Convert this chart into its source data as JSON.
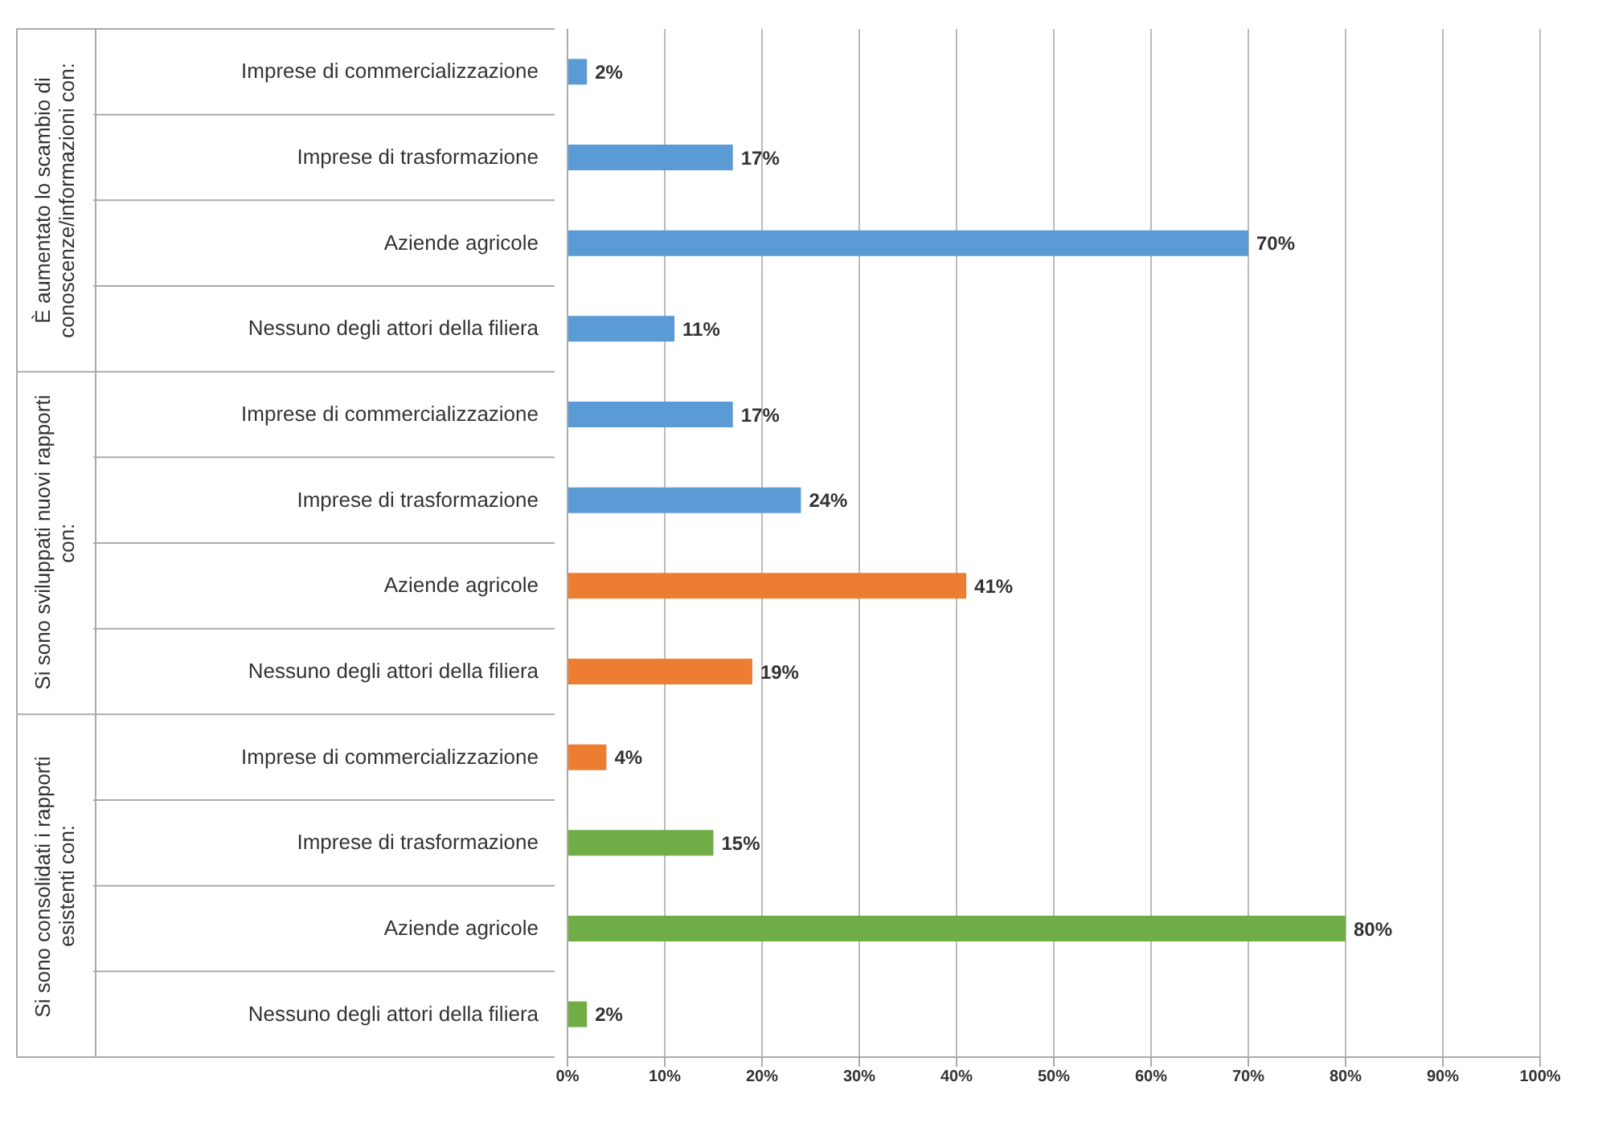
{
  "chart_data": {
    "type": "bar",
    "orientation": "horizontal",
    "categories": [
      "Imprese di commercializzazione",
      "Imprese di trasformazione",
      "Aziende agricole",
      "Nessuno degli attori della filiera",
      "Imprese di commercializzazione",
      "Imprese di trasformazione",
      "Aziende agricole",
      "Nessuno degli attori della filiera",
      "Imprese di commercializzazione",
      "Imprese di trasformazione",
      "Aziende agricole",
      "Nessuno degli attori della filiera"
    ],
    "values": [
      2,
      17,
      70,
      11,
      17,
      24,
      41,
      19,
      4,
      15,
      80,
      2
    ],
    "value_labels": [
      "2%",
      "17%",
      "70%",
      "11%",
      "17%",
      "24%",
      "41%",
      "19%",
      "4%",
      "15%",
      "80%",
      "2%"
    ],
    "colors": [
      "#5b9bd5",
      "#5b9bd5",
      "#5b9bd5",
      "#5b9bd5",
      "#5b9bd5",
      "#5b9bd5",
      "#ed7d31",
      "#ed7d31",
      "#ed7d31",
      "#70ad47",
      "#70ad47",
      "#70ad47"
    ],
    "xlim": [
      0,
      100
    ],
    "xticks": [
      {
        "value": 0,
        "label": "0%"
      },
      {
        "value": 10,
        "label": "10%"
      },
      {
        "value": 20,
        "label": "20%"
      },
      {
        "value": 30,
        "label": "30%"
      },
      {
        "value": 40,
        "label": "40%"
      },
      {
        "value": 50,
        "label": "50%"
      },
      {
        "value": 60,
        "label": "60%"
      },
      {
        "value": 70,
        "label": "70%"
      },
      {
        "value": 80,
        "label": "80%"
      },
      {
        "value": 90,
        "label": "90%"
      },
      {
        "value": 100,
        "label": "100%"
      }
    ],
    "grid": "x",
    "annotations": [
      "È aumentato lo scambio di conoscenze/informazioni con:",
      "Si sono sviluppati nuovi rapporti con:",
      "Si sono consolidati i rapporti esistenti con:"
    ]
  }
}
